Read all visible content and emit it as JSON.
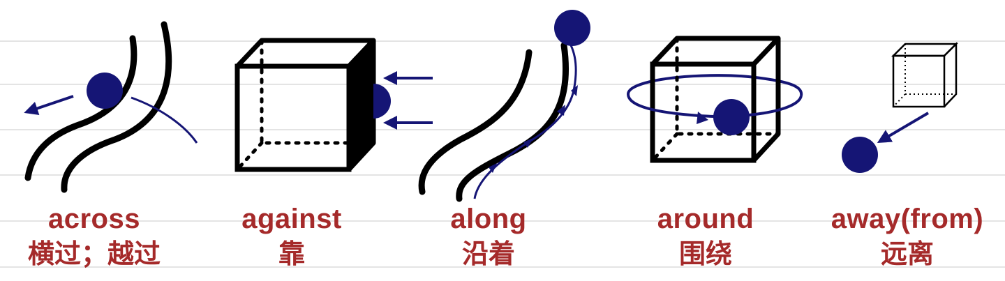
{
  "colors": {
    "ink": "#000000",
    "ball": "#151575",
    "label": "#a52a2a",
    "rule": "#e4e4e4"
  },
  "panels": [
    {
      "term": "across",
      "gloss": "横过；越过",
      "illustration": "ball-crossing-road-icon"
    },
    {
      "term": "against",
      "gloss": "靠",
      "illustration": "ball-pressed-against-cube-icon"
    },
    {
      "term": "along",
      "gloss": "沿着",
      "illustration": "ball-moving-along-road-icon"
    },
    {
      "term": "around",
      "gloss": "围绕",
      "illustration": "ball-orbiting-cube-icon"
    },
    {
      "term": "away(from)",
      "gloss": "远离",
      "illustration": "ball-moving-away-from-cube-icon"
    }
  ]
}
